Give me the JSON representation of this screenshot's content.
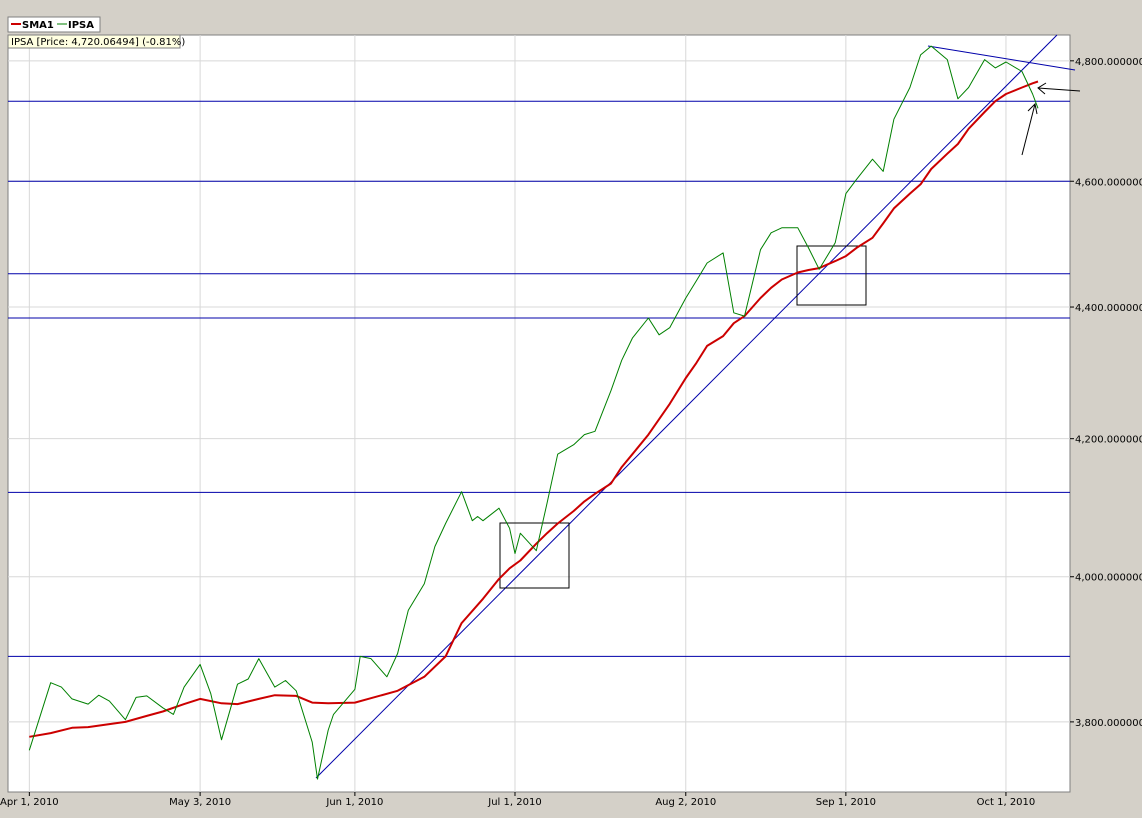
{
  "chart_data": {
    "type": "line",
    "info_label": "IPSA [Price: 4,720.06494] (-0.81%)",
    "log_y": true,
    "grid": true,
    "xlim": [
      "2010-03-28",
      "2010-10-13"
    ],
    "xticks": [
      {
        "value": "2010-04-01",
        "label": "Apr 1, 2010"
      },
      {
        "value": "2010-05-03",
        "label": "May 3, 2010"
      },
      {
        "value": "2010-06-01",
        "label": "Jun 1, 2010"
      },
      {
        "value": "2010-07-01",
        "label": "Jul 1, 2010"
      },
      {
        "value": "2010-08-02",
        "label": "Aug 2, 2010"
      },
      {
        "value": "2010-09-01",
        "label": "Sep 1, 2010"
      },
      {
        "value": "2010-10-01",
        "label": "Oct 1, 2010"
      }
    ],
    "ylim": [
      3707,
      4844
    ],
    "yticks": [
      {
        "value": 3800,
        "label": "3,800.000000"
      },
      {
        "value": 4000,
        "label": "4,000.000000"
      },
      {
        "value": 4200,
        "label": "4,200.000000"
      },
      {
        "value": 4400,
        "label": "4,400.000000"
      },
      {
        "value": 4600,
        "label": "4,600.000000"
      },
      {
        "value": 4800,
        "label": "4,800.000000"
      }
    ],
    "levels": [
      4732,
      4600,
      4452,
      4383,
      4121,
      3889
    ],
    "levels_color": "#0000aa",
    "series": [
      {
        "name": "SMA1",
        "color": "#cc0000",
        "x": [
          "2010-04-01",
          "2010-04-05",
          "2010-04-09",
          "2010-04-12",
          "2010-04-16",
          "2010-04-19",
          "2010-04-23",
          "2010-04-26",
          "2010-04-30",
          "2010-05-03",
          "2010-05-07",
          "2010-05-10",
          "2010-05-14",
          "2010-05-17",
          "2010-05-21",
          "2010-05-24",
          "2010-05-27",
          "2010-06-01",
          "2010-06-04",
          "2010-06-09",
          "2010-06-14",
          "2010-06-18",
          "2010-06-21",
          "2010-06-25",
          "2010-06-28",
          "2010-06-30",
          "2010-07-02",
          "2010-07-05",
          "2010-07-07",
          "2010-07-09",
          "2010-07-12",
          "2010-07-14",
          "2010-07-16",
          "2010-07-19",
          "2010-07-21",
          "2010-07-23",
          "2010-07-26",
          "2010-07-28",
          "2010-07-30",
          "2010-08-02",
          "2010-08-04",
          "2010-08-06",
          "2010-08-09",
          "2010-08-11",
          "2010-08-13",
          "2010-08-16",
          "2010-08-18",
          "2010-08-20",
          "2010-08-23",
          "2010-08-25",
          "2010-08-27",
          "2010-08-30",
          "2010-09-01",
          "2010-09-03",
          "2010-09-06",
          "2010-09-08",
          "2010-09-10",
          "2010-09-13",
          "2010-09-15",
          "2010-09-17",
          "2010-09-20",
          "2010-09-22",
          "2010-09-24",
          "2010-09-27",
          "2010-09-29",
          "2010-10-01",
          "2010-10-04",
          "2010-10-06",
          "2010-10-07"
        ],
        "values": [
          3780,
          3785,
          3792,
          3793,
          3797,
          3800,
          3808,
          3814,
          3824,
          3831,
          3825,
          3824,
          3831,
          3836,
          3835,
          3826,
          3825,
          3826,
          3832,
          3842,
          3861,
          3889,
          3935,
          3969,
          3997,
          4012,
          4023,
          4047,
          4062,
          4076,
          4094,
          4108,
          4119,
          4134,
          4158,
          4177,
          4206,
          4229,
          4252,
          4291,
          4314,
          4340,
          4355,
          4375,
          4386,
          4414,
          4430,
          4443,
          4454,
          4458,
          4461,
          4472,
          4480,
          4493,
          4509,
          4532,
          4556,
          4580,
          4595,
          4620,
          4645,
          4661,
          4686,
          4714,
          4732,
          4744,
          4755,
          4762,
          4765
        ]
      },
      {
        "name": "IPSA",
        "color": "#008000",
        "x": [
          "2010-04-01",
          "2010-04-05",
          "2010-04-07",
          "2010-04-09",
          "2010-04-12",
          "2010-04-14",
          "2010-04-16",
          "2010-04-19",
          "2010-04-21",
          "2010-04-23",
          "2010-04-26",
          "2010-04-28",
          "2010-04-30",
          "2010-05-03",
          "2010-05-05",
          "2010-05-07",
          "2010-05-10",
          "2010-05-12",
          "2010-05-14",
          "2010-05-17",
          "2010-05-19",
          "2010-05-21",
          "2010-05-24",
          "2010-05-25",
          "2010-05-27",
          "2010-05-28",
          "2010-06-01",
          "2010-06-02",
          "2010-06-04",
          "2010-06-07",
          "2010-06-09",
          "2010-06-11",
          "2010-06-14",
          "2010-06-16",
          "2010-06-18",
          "2010-06-21",
          "2010-06-23",
          "2010-06-24",
          "2010-06-25",
          "2010-06-28",
          "2010-06-30",
          "2010-07-01",
          "2010-07-02",
          "2010-07-05",
          "2010-07-07",
          "2010-07-09",
          "2010-07-12",
          "2010-07-14",
          "2010-07-16",
          "2010-07-19",
          "2010-07-21",
          "2010-07-23",
          "2010-07-26",
          "2010-07-28",
          "2010-07-30",
          "2010-08-02",
          "2010-08-04",
          "2010-08-06",
          "2010-08-09",
          "2010-08-11",
          "2010-08-13",
          "2010-08-16",
          "2010-08-18",
          "2010-08-20",
          "2010-08-23",
          "2010-08-25",
          "2010-08-27",
          "2010-08-30",
          "2010-09-01",
          "2010-09-03",
          "2010-09-06",
          "2010-09-08",
          "2010-09-10",
          "2010-09-13",
          "2010-09-15",
          "2010-09-17",
          "2010-09-20",
          "2010-09-22",
          "2010-09-24",
          "2010-09-27",
          "2010-09-29",
          "2010-10-01",
          "2010-10-04",
          "2010-10-06",
          "2010-10-07"
        ],
        "values": [
          3762,
          3853,
          3847,
          3831,
          3824,
          3836,
          3828,
          3803,
          3833,
          3835,
          3819,
          3810,
          3847,
          3878,
          3838,
          3776,
          3851,
          3858,
          3886,
          3847,
          3856,
          3842,
          3773,
          3724,
          3789,
          3810,
          3844,
          3889,
          3886,
          3861,
          3893,
          3953,
          3990,
          4043,
          4076,
          4122,
          4080,
          4086,
          4080,
          4098,
          4069,
          4033,
          4062,
          4037,
          4105,
          4177,
          4191,
          4206,
          4211,
          4272,
          4318,
          4352,
          4383,
          4357,
          4368,
          4414,
          4441,
          4469,
          4485,
          4391,
          4386,
          4490,
          4517,
          4525,
          4525,
          4493,
          4459,
          4501,
          4580,
          4603,
          4636,
          4616,
          4702,
          4755,
          4810,
          4825,
          4802,
          4736,
          4755,
          4802,
          4788,
          4798,
          4782,
          4744,
          4720.06494
        ]
      }
    ]
  }
}
